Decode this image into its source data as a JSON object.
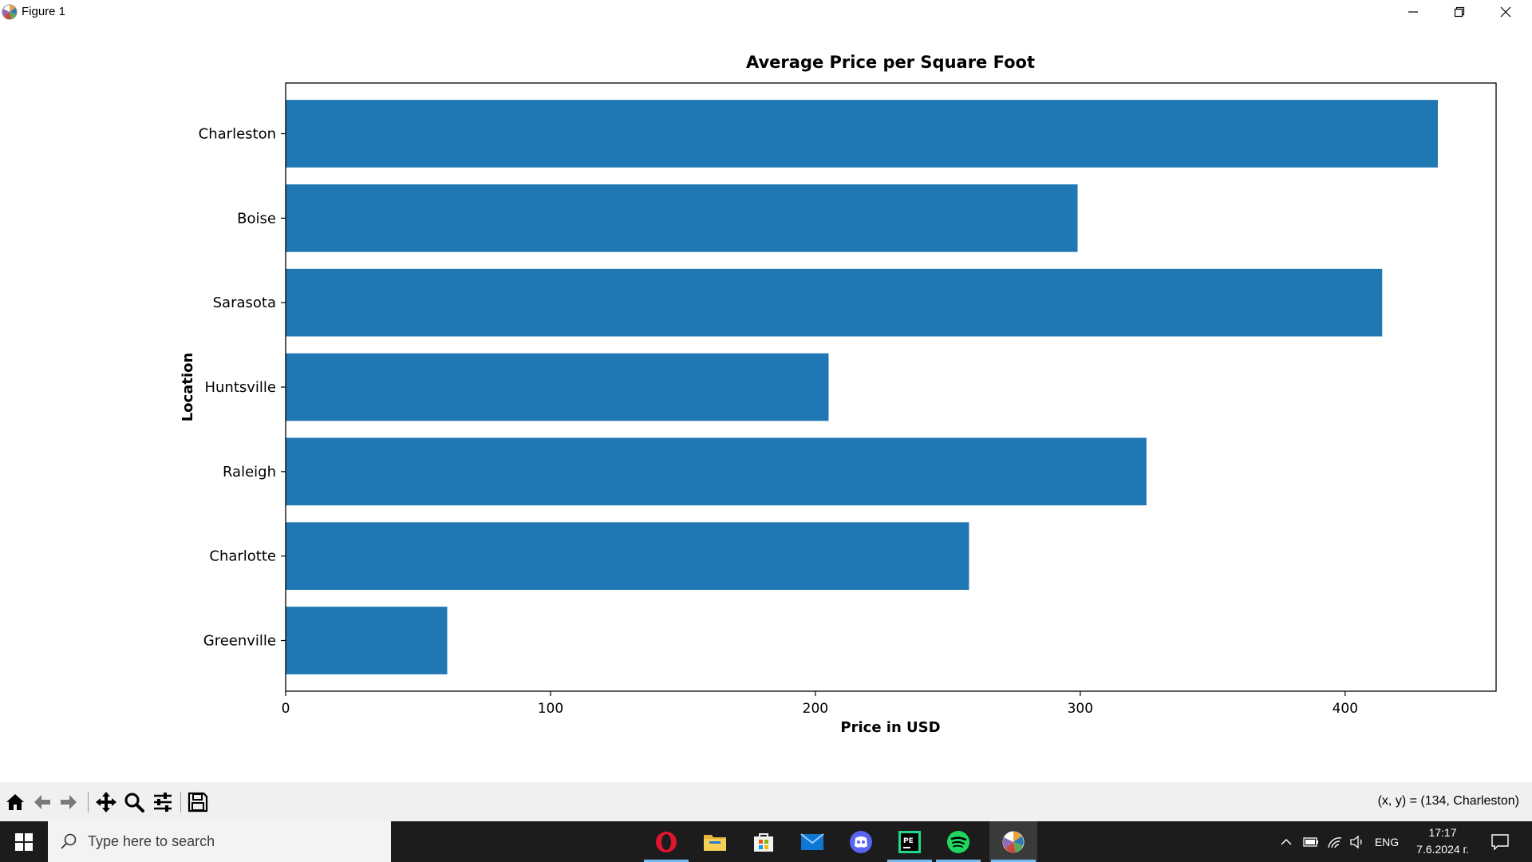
{
  "window": {
    "title": "Figure 1",
    "icon": "matplotlib-logo-icon",
    "controls": [
      "minimize-icon",
      "restore-icon",
      "close-icon"
    ]
  },
  "chart_data": {
    "type": "bar",
    "orientation": "horizontal",
    "title": "Average Price per Square Foot",
    "xlabel": "Price in USD",
    "ylabel": "Location",
    "categories": [
      "Charleston",
      "Boise",
      "Sarasota",
      "Huntsville",
      "Raleigh",
      "Charlotte",
      "Greenville"
    ],
    "values": [
      435,
      299,
      414,
      205,
      325,
      258,
      61
    ],
    "xlim": [
      0,
      457
    ],
    "xticks": [
      0,
      100,
      200,
      300,
      400
    ],
    "bar_color": "#1f77b4",
    "grid": false,
    "legend": false
  },
  "toolbar": {
    "buttons": [
      "home-icon",
      "back-icon",
      "forward-icon",
      "pan-icon",
      "zoom-icon",
      "configure-subplots-icon",
      "save-icon"
    ],
    "coords_text": "(x, y) = (134, Charleston)"
  },
  "taskbar": {
    "search_placeholder": "Type here to search",
    "apps": [
      "opera-icon",
      "file-explorer-icon",
      "microsoft-store-icon",
      "mail-icon",
      "discord-icon",
      "pycharm-icon",
      "spotify-icon",
      "matplotlib-icon"
    ],
    "tray": {
      "language": "ENG",
      "time": "17:17",
      "date": "7.6.2024 г."
    }
  }
}
